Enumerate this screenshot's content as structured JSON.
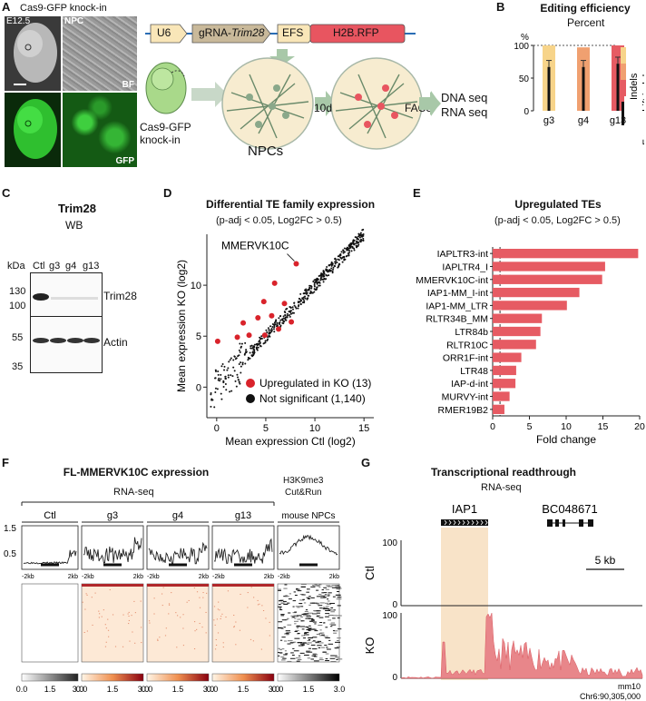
{
  "panels": [
    "A",
    "B",
    "C",
    "D",
    "E",
    "F",
    "G"
  ],
  "panel_a": {
    "title": "Cas9-GFP knock-in",
    "embryo_label": "E12.5",
    "npc_label": "NPC",
    "bf_label": "BF",
    "gfp_label": "GFP",
    "construct": {
      "u6": "U6",
      "grna_prefix": "gRNA-",
      "grna_gene": "Trim28",
      "efs": "EFS",
      "h2b": "H2B.RFP"
    },
    "mouse_label_1": "Cas9-GFP",
    "mouse_label_2": "knock-in",
    "npcs": "NPCs",
    "time": "10d",
    "facs": "FACS",
    "dna": "DNA seq",
    "rna": "RNA seq"
  },
  "chart_data": [
    {
      "panel": "B",
      "type": "bar",
      "title": "Editing efficiency",
      "subtitle": "Percent",
      "categories": [
        "g3",
        "g4",
        "g13"
      ],
      "series": [
        {
          "name": "Indels",
          "values": [
            100,
            97,
            100
          ]
        },
        {
          "name": "Frameshift indels",
          "values": [
            67,
            67,
            72
          ]
        }
      ],
      "ylabel": "%",
      "ylim": [
        0,
        100
      ],
      "yticks": [
        "0",
        "50",
        "100"
      ],
      "colors": [
        "#f7d48a",
        "#f0a070",
        "#e65b63"
      ]
    },
    {
      "panel": "D",
      "type": "scatter",
      "title": "Differential TE family expression",
      "subtitle": "(p-adj < 0.05, Log2FC > 0.5)",
      "xlabel": "Mean expression Ctl (log2)",
      "ylabel": "Mean expression KO (log2)",
      "xlim": [
        -1,
        16
      ],
      "ylim": [
        -3,
        15
      ],
      "xticks": [
        0,
        5,
        10,
        15
      ],
      "yticks": [
        0,
        5,
        10
      ],
      "annotation": "MMERVK10C",
      "legend": [
        {
          "name": "Upregulated in KO (13)",
          "color": "#d9232b"
        },
        {
          "name": "Not significant (1,140)",
          "color": "#111111"
        }
      ],
      "upregulated": [
        [
          8.1,
          12.1
        ],
        [
          5.9,
          10.2
        ],
        [
          4.8,
          8.4
        ],
        [
          6.9,
          8.2
        ],
        [
          5.6,
          7.0
        ],
        [
          4.2,
          6.8
        ],
        [
          2.7,
          6.3
        ],
        [
          3.3,
          5.1
        ],
        [
          4.9,
          5.1
        ],
        [
          6.3,
          5.7
        ],
        [
          7.6,
          6.4
        ],
        [
          0.1,
          4.5
        ],
        [
          2.1,
          4.9
        ]
      ]
    },
    {
      "panel": "E",
      "type": "bar",
      "title": "Upregulated TEs",
      "subtitle": "(p-adj < 0.05, Log2FC > 0.5)",
      "categories": [
        "IAPLTR3-int",
        "IAPLTR4_I",
        "MMERVK10C-int",
        "IAP1-MM_I-int",
        "IAP1-MM_LTR",
        "RLTR34B_MM",
        "LTR84b",
        "RLTR10C",
        "ORR1F-int",
        "LTR48",
        "IAP-d-int",
        "MURVY-int",
        "RMER19B2"
      ],
      "values": [
        19.8,
        15.3,
        14.9,
        11.8,
        10.1,
        6.7,
        6.5,
        5.9,
        3.9,
        3.2,
        3.1,
        2.3,
        1.6
      ],
      "xlabel": "Fold change",
      "xlim": [
        0,
        20
      ],
      "xticks": [
        0,
        5,
        10,
        15,
        20
      ],
      "color": "#e65b63"
    }
  ],
  "panel_c": {
    "title": "Trim28",
    "subtitle": "WB",
    "kda": "kDa",
    "lanes": [
      "Ctl",
      "g3",
      "g4",
      "g13"
    ],
    "mw": [
      "130",
      "100",
      "55",
      "35"
    ],
    "bands": [
      "Trim28",
      "Actin"
    ]
  },
  "panel_f": {
    "title": "FL-MMERVK10C expression",
    "rnaseq": "RNA-seq",
    "columns": [
      "Ctl",
      "g3",
      "g4",
      "g13"
    ],
    "chip_1": "H3K9me3",
    "chip_2": "Cut&Run",
    "chip_3": "mouse NPCs",
    "yticks": [
      "1.5",
      "0.5"
    ],
    "xl": "-2kb",
    "xr": "2kb",
    "scale_ticks": [
      "0.0",
      "1.5",
      "3.0"
    ]
  },
  "panel_g": {
    "title": "Transcriptional readthrough",
    "subtitle": "RNA-seq",
    "gene1": "IAP1",
    "gene2": "BC048671",
    "scale": "5 kb",
    "tracks": [
      "Ctl",
      "KO"
    ],
    "ytick_top": "100",
    "ytick_bot": "0",
    "genome": "mm10",
    "coord": "Chr6:90,305,000"
  }
}
